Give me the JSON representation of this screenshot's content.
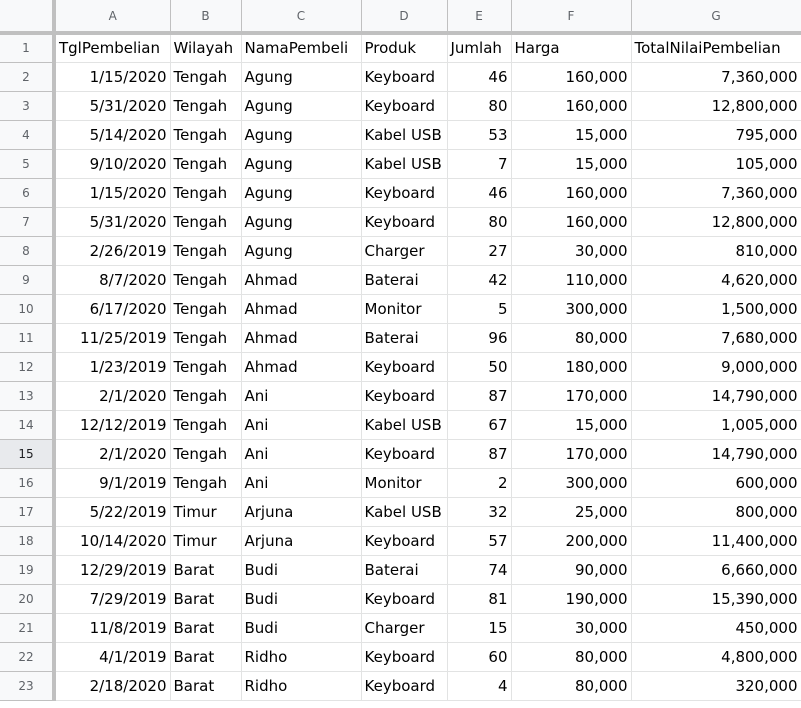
{
  "columns": [
    "A",
    "B",
    "C",
    "D",
    "E",
    "F",
    "G"
  ],
  "headers": [
    "TglPembelian",
    "Wilayah",
    "NamaPembeli",
    "Produk",
    "Jumlah",
    "Harga",
    "TotalNilaiPembelian"
  ],
  "rows": [
    [
      "1/15/2020",
      "Tengah",
      "Agung",
      "Keyboard",
      "46",
      "160,000",
      "7,360,000"
    ],
    [
      "5/31/2020",
      "Tengah",
      "Agung",
      "Keyboard",
      "80",
      "160,000",
      "12,800,000"
    ],
    [
      "5/14/2020",
      "Tengah",
      "Agung",
      "Kabel USB",
      "53",
      "15,000",
      "795,000"
    ],
    [
      "9/10/2020",
      "Tengah",
      "Agung",
      "Kabel USB",
      "7",
      "15,000",
      "105,000"
    ],
    [
      "1/15/2020",
      "Tengah",
      "Agung",
      "Keyboard",
      "46",
      "160,000",
      "7,360,000"
    ],
    [
      "5/31/2020",
      "Tengah",
      "Agung",
      "Keyboard",
      "80",
      "160,000",
      "12,800,000"
    ],
    [
      "2/26/2019",
      "Tengah",
      "Agung",
      "Charger",
      "27",
      "30,000",
      "810,000"
    ],
    [
      "8/7/2020",
      "Tengah",
      "Ahmad",
      "Baterai",
      "42",
      "110,000",
      "4,620,000"
    ],
    [
      "6/17/2020",
      "Tengah",
      "Ahmad",
      "Monitor",
      "5",
      "300,000",
      "1,500,000"
    ],
    [
      "11/25/2019",
      "Tengah",
      "Ahmad",
      "Baterai",
      "96",
      "80,000",
      "7,680,000"
    ],
    [
      "1/23/2019",
      "Tengah",
      "Ahmad",
      "Keyboard",
      "50",
      "180,000",
      "9,000,000"
    ],
    [
      "2/1/2020",
      "Tengah",
      "Ani",
      "Keyboard",
      "87",
      "170,000",
      "14,790,000"
    ],
    [
      "12/12/2019",
      "Tengah",
      "Ani",
      "Kabel USB",
      "67",
      "15,000",
      "1,005,000"
    ],
    [
      "2/1/2020",
      "Tengah",
      "Ani",
      "Keyboard",
      "87",
      "170,000",
      "14,790,000"
    ],
    [
      "9/1/2019",
      "Tengah",
      "Ani",
      "Monitor",
      "2",
      "300,000",
      "600,000"
    ],
    [
      "5/22/2019",
      "Timur",
      "Arjuna",
      "Kabel USB",
      "32",
      "25,000",
      "800,000"
    ],
    [
      "10/14/2020",
      "Timur",
      "Arjuna",
      "Keyboard",
      "57",
      "200,000",
      "11,400,000"
    ],
    [
      "12/29/2019",
      "Barat",
      "Budi",
      "Baterai",
      "74",
      "90,000",
      "6,660,000"
    ],
    [
      "7/29/2019",
      "Barat",
      "Budi",
      "Keyboard",
      "81",
      "190,000",
      "15,390,000"
    ],
    [
      "11/8/2019",
      "Barat",
      "Budi",
      "Charger",
      "15",
      "30,000",
      "450,000"
    ],
    [
      "4/1/2019",
      "Barat",
      "Ridho",
      "Keyboard",
      "60",
      "80,000",
      "4,800,000"
    ],
    [
      "2/18/2020",
      "Barat",
      "Ridho",
      "Keyboard",
      "4",
      "80,000",
      "320,000"
    ]
  ],
  "align": [
    "num",
    "txt",
    "txt",
    "txt",
    "num",
    "num",
    "num"
  ],
  "hover_row": 15,
  "colors": {
    "header_bg": "#f8f9fa",
    "header_text": "#5f6368",
    "gridline": "#e2e3e3",
    "header_border": "#c0c0c0"
  }
}
